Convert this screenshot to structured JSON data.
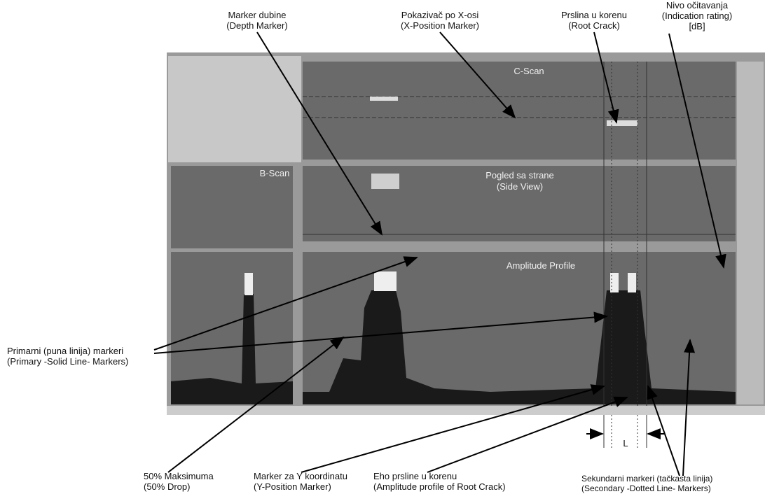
{
  "panels": {
    "c_scan": "C-Scan",
    "b_scan": "B-Scan",
    "side_view": [
      "Pogled sa strane",
      "(Side View)"
    ],
    "amplitude_profile": "Amplitude Profile"
  },
  "annotations": {
    "depth_marker": [
      "Marker dubine",
      "(Depth Marker)"
    ],
    "x_position_marker": [
      "Pokazivač po X-osi",
      "(X-Position Marker)"
    ],
    "root_crack": [
      "Prslina u korenu",
      "(Root Crack)"
    ],
    "indication_rating": [
      "Nivo očitavanja",
      "(Indication rating)",
      "[dB]"
    ],
    "primary_markers": [
      "Primarni (puna linija) markeri",
      "(Primary -Solid Line- Markers)"
    ],
    "drop_50": [
      "50% Maksimuma",
      "(50% Drop)"
    ],
    "y_position_marker": [
      "Marker za Y koordinatu",
      "(Y-Position Marker)"
    ],
    "root_crack_echo": [
      "Eho prsline u korenu",
      "(Amplitude profile of Root Crack)"
    ],
    "secondary_markers": [
      "Sekundarni markeri (tačkasta linija)",
      "(Secondary -Dotted Line- Markers)"
    ]
  },
  "gap_label": "L"
}
